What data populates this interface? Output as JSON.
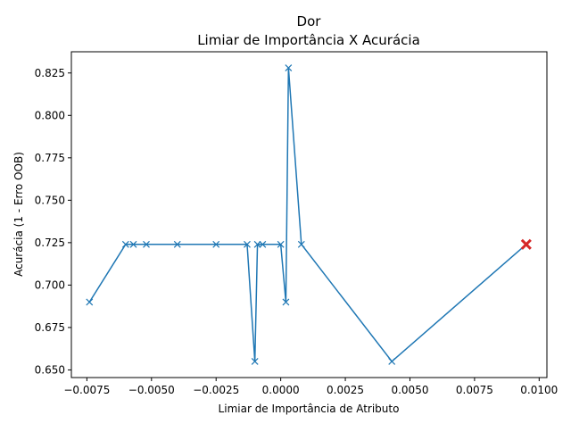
{
  "chart_data": {
    "type": "line",
    "title": "Dor",
    "subtitle": "Limiar de Importância X Acurácia",
    "xlabel": "Limiar de Importância de Atributo",
    "ylabel": "Acurácia (1 - Erro OOB)",
    "xlim": [
      -0.0081,
      0.0103
    ],
    "ylim": [
      0.6455,
      0.8375
    ],
    "grid": false,
    "series": [
      {
        "color": "#1f77b4",
        "marker": "x",
        "points": [
          {
            "x": -0.0074,
            "y": 0.69
          },
          {
            "x": -0.006,
            "y": 0.724
          },
          {
            "x": -0.0057,
            "y": 0.724
          },
          {
            "x": -0.0052,
            "y": 0.724
          },
          {
            "x": -0.004,
            "y": 0.724
          },
          {
            "x": -0.0025,
            "y": 0.724
          },
          {
            "x": -0.0013,
            "y": 0.724
          },
          {
            "x": -0.001,
            "y": 0.655
          },
          {
            "x": -0.0009,
            "y": 0.724
          },
          {
            "x": -0.0007,
            "y": 0.724
          },
          {
            "x": 0.0,
            "y": 0.724
          },
          {
            "x": 0.0002,
            "y": 0.69
          },
          {
            "x": 0.0003,
            "y": 0.828
          },
          {
            "x": 0.0008,
            "y": 0.724
          },
          {
            "x": 0.0043,
            "y": 0.655
          },
          {
            "x": 0.0095,
            "y": 0.724
          }
        ]
      }
    ],
    "highlight": {
      "x": 0.0095,
      "y": 0.724,
      "color": "#d62728",
      "marker": "x"
    },
    "xticks": [
      {
        "value": -0.0075,
        "label": "−0.0075"
      },
      {
        "value": -0.005,
        "label": "−0.0050"
      },
      {
        "value": -0.0025,
        "label": "−0.0025"
      },
      {
        "value": 0.0,
        "label": "0.0000"
      },
      {
        "value": 0.0025,
        "label": "0.0025"
      },
      {
        "value": 0.005,
        "label": "0.0050"
      },
      {
        "value": 0.0075,
        "label": "0.0075"
      },
      {
        "value": 0.01,
        "label": "0.0100"
      }
    ],
    "yticks": [
      {
        "value": 0.65,
        "label": "0.650"
      },
      {
        "value": 0.675,
        "label": "0.675"
      },
      {
        "value": 0.7,
        "label": "0.700"
      },
      {
        "value": 0.725,
        "label": "0.725"
      },
      {
        "value": 0.75,
        "label": "0.750"
      },
      {
        "value": 0.775,
        "label": "0.775"
      },
      {
        "value": 0.8,
        "label": "0.800"
      },
      {
        "value": 0.825,
        "label": "0.825"
      }
    ]
  }
}
